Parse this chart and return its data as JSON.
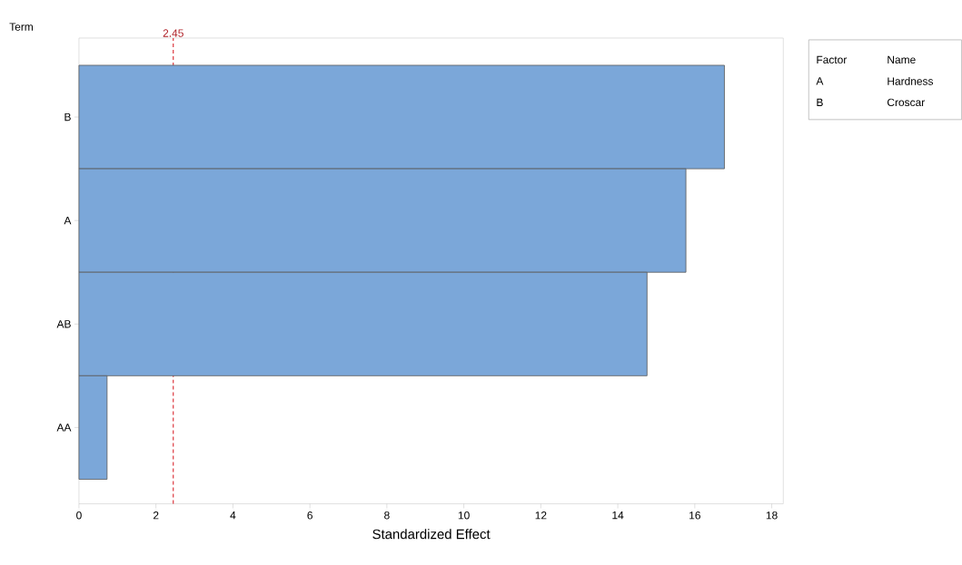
{
  "chart_data": {
    "type": "bar",
    "orientation": "horizontal",
    "ylabel": "Term",
    "xlabel": "Standardized Effect",
    "categories": [
      "B",
      "A",
      "AB",
      "AA"
    ],
    "values": [
      16.77,
      15.77,
      14.76,
      0.73
    ],
    "color": "#7ba7d9",
    "xlim": [
      0,
      18.3
    ],
    "xticks": [
      0,
      2,
      4,
      6,
      8,
      10,
      12,
      14,
      16,
      18
    ],
    "ref_lines": [
      {
        "axis": "x",
        "value": 2.45,
        "label": "2.45",
        "color": "#d9262e",
        "line_style": "dashed"
      }
    ],
    "annotations": [
      "Factor",
      "Name",
      "A",
      "Hardness",
      "B",
      "Croscar"
    ]
  }
}
